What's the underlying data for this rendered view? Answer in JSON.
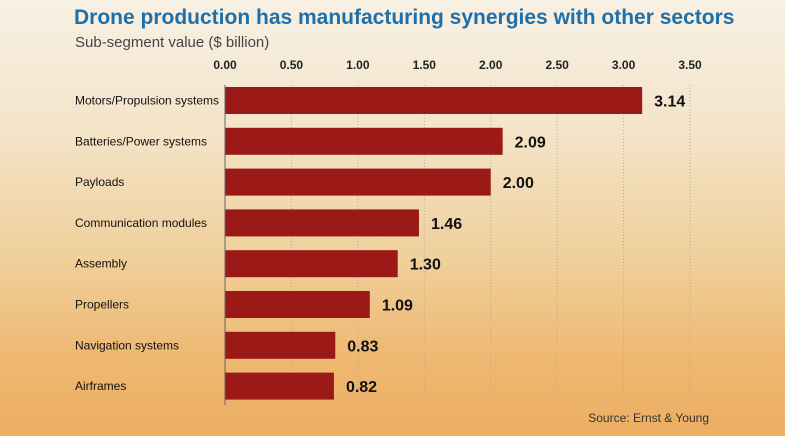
{
  "header": {
    "title": "Drone production has manufacturing synergies with other sectors",
    "subtitle": "Sub-segment value ($ billion)"
  },
  "footer": {
    "source": "Source: Ernst & Young"
  },
  "colors": {
    "bar": "#9b1a17",
    "title": "#1f6fa8"
  },
  "chart_data": {
    "type": "bar",
    "orientation": "horizontal",
    "title": "Drone production has manufacturing synergies with other sectors",
    "subtitle": "Sub-segment value ($ billion)",
    "categories": [
      "Motors/Propulsion systems",
      "Batteries/Power systems",
      "Payloads",
      "Communication modules",
      "Assembly",
      "Propellers",
      "Navigation systems",
      "Airframes"
    ],
    "values": [
      3.14,
      2.09,
      2.0,
      1.46,
      1.3,
      1.09,
      0.83,
      0.82
    ],
    "value_labels": [
      "3.14",
      "2.09",
      "2.00",
      "1.46",
      "1.30",
      "1.09",
      "0.83",
      "0.82"
    ],
    "xlim": [
      0,
      3.5
    ],
    "x_ticks": [
      "0.00",
      "0.50",
      "1.00",
      "1.50",
      "2.00",
      "2.50",
      "3.00",
      "3.50"
    ],
    "grid": true,
    "axis_position": "top"
  }
}
